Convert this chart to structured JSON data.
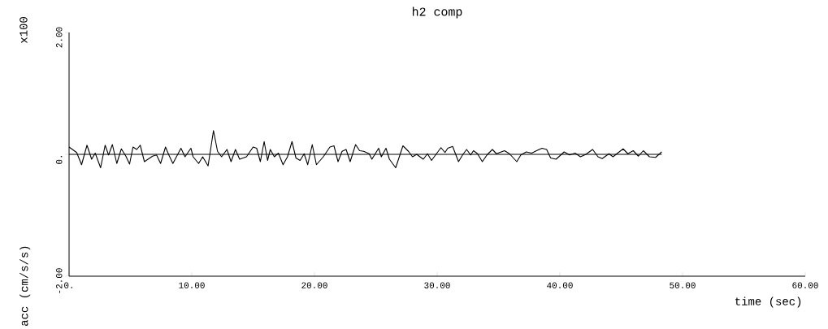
{
  "chart_data": {
    "type": "line",
    "title": "h2 comp",
    "xlabel": "time (sec)",
    "ylabel": "acc (cm/s/s)",
    "annotations": [
      "x100"
    ],
    "xlim": [
      0,
      60
    ],
    "ylim": [
      -2,
      2
    ],
    "xticks": [
      {
        "value": 0,
        "label": "0."
      },
      {
        "value": 10,
        "label": "10.00"
      },
      {
        "value": 20,
        "label": "20.00"
      },
      {
        "value": 30,
        "label": "30.00"
      },
      {
        "value": 40,
        "label": "40.00"
      },
      {
        "value": 50,
        "label": "50.00"
      },
      {
        "value": 60,
        "label": "60.00"
      }
    ],
    "yticks": [
      {
        "value": -2,
        "label": "-2.00"
      },
      {
        "value": 0,
        "label": "0."
      },
      {
        "value": 2,
        "label": "2.00"
      }
    ],
    "series": [
      {
        "color": "#000000",
        "x": [
          0,
          0.62,
          1.02,
          1.46,
          1.84,
          2.13,
          2.57,
          2.94,
          3.22,
          3.53,
          3.89,
          4.26,
          4.63,
          4.93,
          5.21,
          5.52,
          5.8,
          6.14,
          6.8,
          7.13,
          7.46,
          7.86,
          8.13,
          8.46,
          9.12,
          9.45,
          9.93,
          10.11,
          10.56,
          10.89,
          11.33,
          11.77,
          12.1,
          12.43,
          12.87,
          13.2,
          13.56,
          13.9,
          14.46,
          15.0,
          15.29,
          15.59,
          15.9,
          16.18,
          16.4,
          16.73,
          17.06,
          17.44,
          17.8,
          18.17,
          18.49,
          18.83,
          19.16,
          19.45,
          19.82,
          20.16,
          20.72,
          21.26,
          21.59,
          21.92,
          22.25,
          22.58,
          22.91,
          23.35,
          23.68,
          24.01,
          24.46,
          24.68,
          25.23,
          25.45,
          25.83,
          26.11,
          26.62,
          27.21,
          27.66,
          27.99,
          28.33,
          28.87,
          29.21,
          29.54,
          29.98,
          30.31,
          30.64,
          30.86,
          31.26,
          31.74,
          32.07,
          32.4,
          32.73,
          32.96,
          33.29,
          33.68,
          34.06,
          34.5,
          34.83,
          35.49,
          35.89,
          36.49,
          36.82,
          37.26,
          37.7,
          38.1,
          38.54,
          38.92,
          39.25,
          39.69,
          40.35,
          40.79,
          41.24,
          41.68,
          42.12,
          42.67,
          43.11,
          43.45,
          44.0,
          44.33,
          44.77,
          45.16,
          45.54,
          45.98,
          46.4,
          46.8,
          47.3,
          47.8,
          48.3
        ],
        "values": [
          0.12,
          0.03,
          -0.17,
          0.15,
          -0.08,
          0.02,
          -0.22,
          0.15,
          -0.01,
          0.16,
          -0.15,
          0.09,
          -0.03,
          -0.16,
          0.12,
          0.08,
          0.15,
          -0.12,
          -0.03,
          -0.01,
          -0.15,
          0.12,
          -0.01,
          -0.15,
          0.1,
          -0.04,
          0.1,
          -0.04,
          -0.15,
          -0.04,
          -0.19,
          0.39,
          0.05,
          -0.04,
          0.08,
          -0.12,
          0.08,
          -0.08,
          -0.04,
          0.12,
          0.1,
          -0.12,
          0.21,
          -0.1,
          0.08,
          -0.04,
          0.02,
          -0.17,
          -0.04,
          0.21,
          -0.06,
          -0.1,
          0.01,
          -0.17,
          0.16,
          -0.17,
          -0.04,
          0.12,
          0.14,
          -0.12,
          0.05,
          0.08,
          -0.12,
          0.16,
          0.06,
          0.05,
          0.01,
          -0.08,
          0.1,
          -0.04,
          0.1,
          -0.08,
          -0.22,
          0.14,
          0.05,
          -0.04,
          0,
          -0.08,
          0.01,
          -0.1,
          0.02,
          0.11,
          0.03,
          0.1,
          0.13,
          -0.12,
          -0.01,
          0.08,
          -0.01,
          0.06,
          0.01,
          -0.12,
          -0.01,
          0.08,
          0.01,
          0.06,
          0.01,
          -0.12,
          -0.01,
          0.04,
          0.02,
          0.06,
          0.1,
          0.08,
          -0.06,
          -0.08,
          0.04,
          -0.01,
          0.02,
          -0.04,
          0,
          0.08,
          -0.04,
          -0.07,
          0.01,
          -0.04,
          0.03,
          0.09,
          0.01,
          0.06,
          -0.03,
          0.06,
          -0.04,
          -0.05,
          0.04
        ]
      },
      {
        "color": "#000000",
        "x": [
          0,
          48.3
        ],
        "values": [
          0,
          0
        ]
      }
    ]
  }
}
